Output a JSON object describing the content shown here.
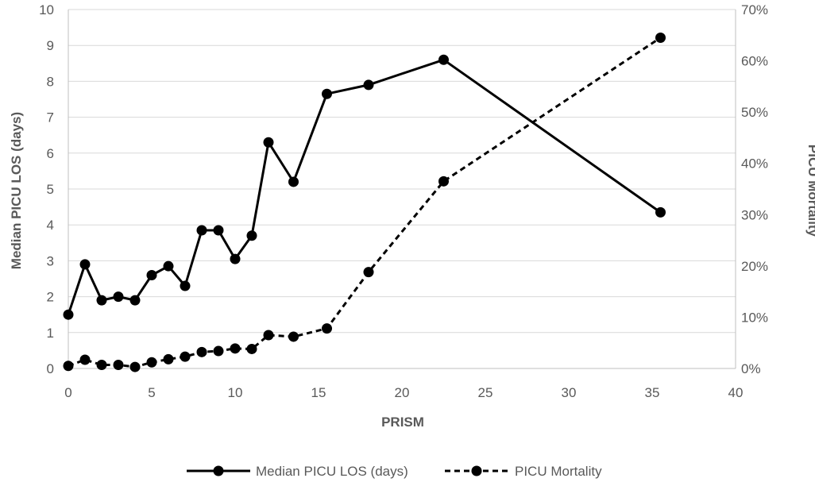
{
  "chart_data": {
    "type": "line",
    "xlabel": "PRISM",
    "ylabel": "Median PICU LOS (days)",
    "y2label": "PICU Mortality",
    "xlim": [
      0,
      40
    ],
    "ylim": [
      0,
      10
    ],
    "y2lim": [
      0,
      0.7
    ],
    "x_ticks": [
      "0",
      "5",
      "10",
      "15",
      "20",
      "25",
      "30",
      "35",
      "40"
    ],
    "y_ticks": [
      "0",
      "1",
      "2",
      "3",
      "4",
      "5",
      "6",
      "7",
      "8",
      "9",
      "10"
    ],
    "y2_ticks": [
      "0%",
      "10%",
      "20%",
      "30%",
      "40%",
      "50%",
      "60%",
      "70%"
    ],
    "grid": true,
    "legend_position": "bottom",
    "series": [
      {
        "name": "Median PICU LOS (days)",
        "axis": "left",
        "line_style": "solid",
        "color": "#000000",
        "x": [
          0,
          1,
          2,
          3,
          4,
          5,
          6,
          7,
          8,
          9,
          10,
          11,
          12,
          13.5,
          15.5,
          18,
          22.5,
          35.5
        ],
        "values": [
          1.5,
          2.9,
          1.9,
          2.0,
          1.9,
          2.6,
          2.85,
          2.3,
          3.85,
          3.85,
          3.05,
          3.7,
          6.3,
          5.2,
          7.65,
          7.9,
          8.6,
          4.35
        ]
      },
      {
        "name": "PICU Mortality",
        "axis": "right",
        "line_style": "dashed",
        "color": "#000000",
        "x": [
          0,
          1,
          2,
          3,
          4,
          5,
          6,
          7,
          8,
          9,
          10,
          11,
          12,
          13.5,
          15.5,
          18,
          22.5,
          35.5
        ],
        "values": [
          0.005,
          0.017,
          0.007,
          0.007,
          0.003,
          0.012,
          0.018,
          0.023,
          0.032,
          0.034,
          0.039,
          0.038,
          0.065,
          0.062,
          0.078,
          0.188,
          0.365,
          0.645
        ]
      }
    ]
  }
}
